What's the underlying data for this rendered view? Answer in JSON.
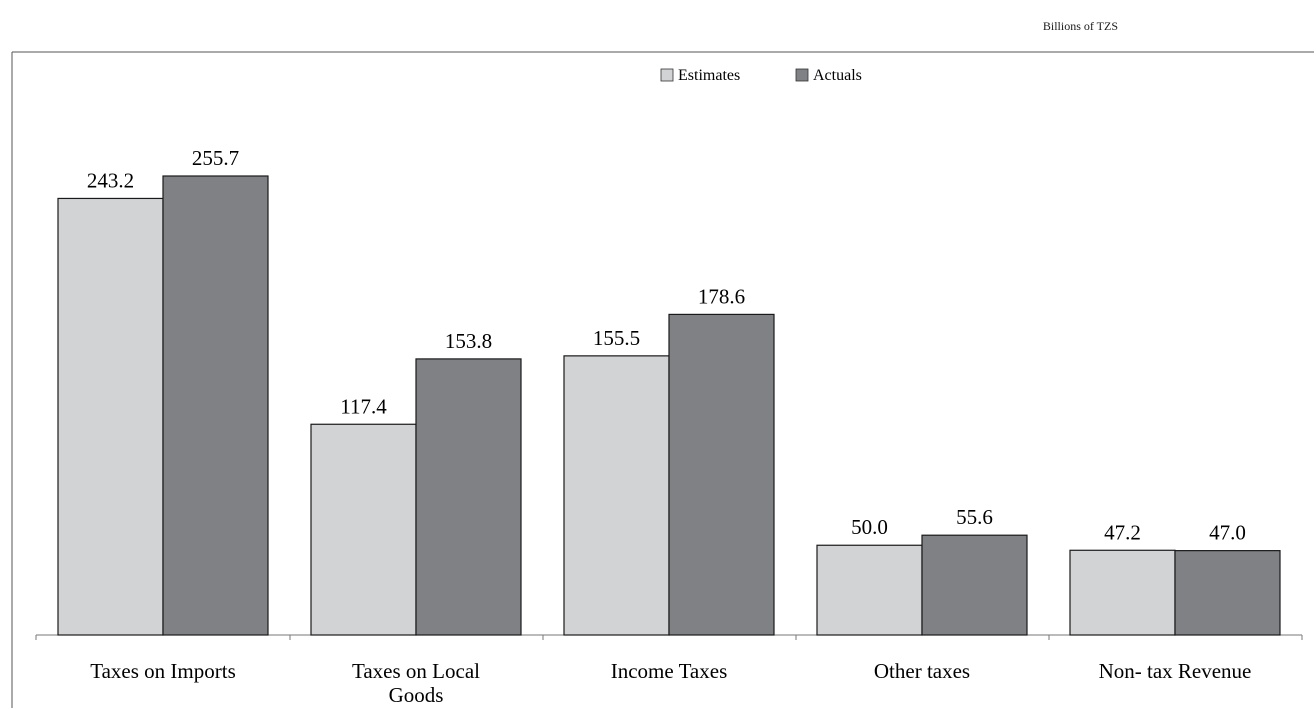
{
  "unit_label": "Billions of TZS",
  "chart_data": {
    "type": "bar",
    "categories": [
      "Taxes on Imports",
      "Taxes on Local Goods",
      "Income Taxes",
      "Other taxes",
      "Non- tax Revenue"
    ],
    "category_lines": [
      [
        "Taxes on Imports"
      ],
      [
        "Taxes on Local",
        "Goods"
      ],
      [
        "Income Taxes"
      ],
      [
        "Other taxes"
      ],
      [
        "Non- tax Revenue"
      ]
    ],
    "series": [
      {
        "name": "Estimates",
        "values": [
          243.2,
          117.4,
          155.5,
          50.0,
          47.2
        ],
        "labels": [
          "243.2",
          "117.4",
          "155.5",
          "50.0",
          "47.2"
        ],
        "color": "#d2d3d5"
      },
      {
        "name": "Actuals",
        "values": [
          255.7,
          153.8,
          178.6,
          55.6,
          47.0
        ],
        "labels": [
          "255.7",
          "153.8",
          "178.6",
          "55.6",
          "47.0"
        ],
        "color": "#808184"
      }
    ],
    "ylim": [
      0,
      255.7
    ],
    "legend_position": "top-center",
    "grid": false
  }
}
